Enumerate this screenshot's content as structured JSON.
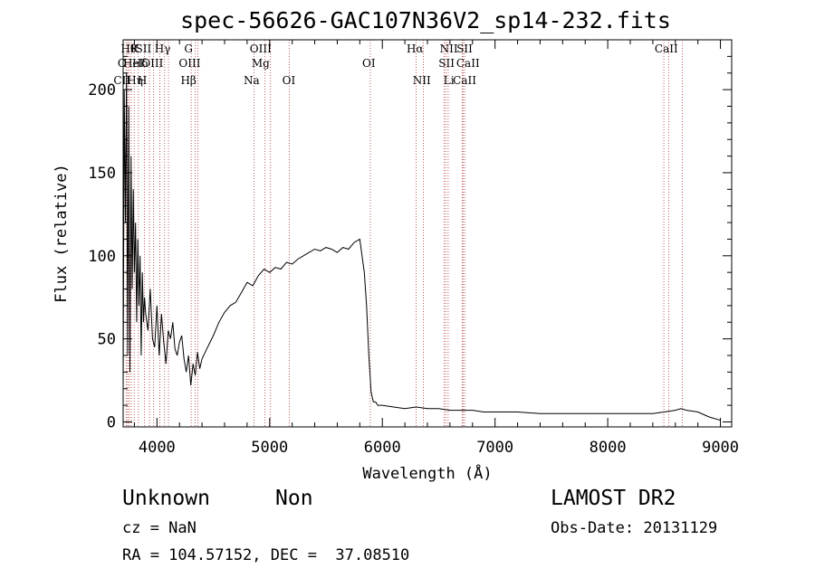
{
  "chart_data": {
    "type": "line",
    "title": "spec-56626-GAC107N36V2_sp14-232.fits",
    "xlabel": "Wavelength (Å)",
    "ylabel": "Flux (relative)",
    "xlim": [
      3700,
      9100
    ],
    "ylim": [
      -3,
      230
    ],
    "xticks": [
      4000,
      5000,
      6000,
      7000,
      8000,
      9000
    ],
    "yticks": [
      0,
      50,
      100,
      150,
      200
    ],
    "grid": false,
    "series": [
      {
        "x": [
          3700,
          3710,
          3720,
          3730,
          3740,
          3750,
          3760,
          3770,
          3780,
          3790,
          3800,
          3810,
          3820,
          3830,
          3840,
          3850,
          3860,
          3870,
          3880,
          3890,
          3900,
          3920,
          3940,
          3960,
          3980,
          4000,
          4020,
          4040,
          4060,
          4080,
          4100,
          4120,
          4140,
          4160,
          4180,
          4200,
          4220,
          4240,
          4260,
          4280,
          4300,
          4320,
          4340,
          4360,
          4380,
          4400,
          4450,
          4500,
          4550,
          4600,
          4650,
          4700,
          4750,
          4800,
          4850,
          4900,
          4950,
          5000,
          5050,
          5100,
          5150,
          5200,
          5250,
          5300,
          5350,
          5400,
          5450,
          5500,
          5550,
          5600,
          5650,
          5700,
          5750,
          5800,
          5820,
          5840,
          5860,
          5880,
          5900,
          5920,
          5940,
          5960,
          6000,
          6100,
          6200,
          6300,
          6400,
          6500,
          6600,
          6700,
          6800,
          6900,
          7000,
          7200,
          7400,
          7600,
          7800,
          8000,
          8200,
          8400,
          8500,
          8600,
          8650,
          8700,
          8800,
          8900,
          9000
        ],
        "y": [
          20,
          200,
          120,
          210,
          40,
          190,
          30,
          160,
          80,
          140,
          90,
          120,
          60,
          110,
          70,
          100,
          40,
          90,
          60,
          75,
          65,
          55,
          80,
          50,
          45,
          70,
          40,
          65,
          48,
          35,
          55,
          50,
          60,
          44,
          40,
          48,
          52,
          38,
          30,
          40,
          22,
          35,
          28,
          42,
          32,
          38,
          45,
          52,
          60,
          66,
          70,
          72,
          78,
          84,
          82,
          88,
          92,
          90,
          93,
          92,
          96,
          95,
          98,
          100,
          102,
          104,
          103,
          105,
          104,
          102,
          105,
          104,
          108,
          110,
          100,
          90,
          70,
          40,
          18,
          12,
          12,
          10,
          10,
          9,
          8,
          9,
          8,
          8,
          7,
          7,
          7,
          6,
          6,
          6,
          5,
          5,
          5,
          5,
          5,
          5,
          6,
          7,
          8,
          7,
          6,
          3,
          1
        ]
      }
    ],
    "annotations": [
      "O",
      "CII",
      "Hθ",
      "K",
      "HeI",
      "Hη",
      "H",
      "SII",
      "Hδ",
      "OIII",
      "Hγ",
      "G",
      "OIII",
      "Hβ",
      "OIII",
      "Mg",
      "Na",
      "OI",
      "OI",
      "Hα",
      "NII",
      "NII",
      "SII",
      "Li",
      "SII",
      "CaII",
      "CaII",
      "CaII"
    ]
  },
  "footer": {
    "object_class": "Unknown",
    "subclass": "Non",
    "survey": "LAMOST DR2",
    "cz": "cz = NaN",
    "obs_date": "Obs-Date: 20131129",
    "coords": "RA = 104.57152, DEC =  37.08510"
  }
}
